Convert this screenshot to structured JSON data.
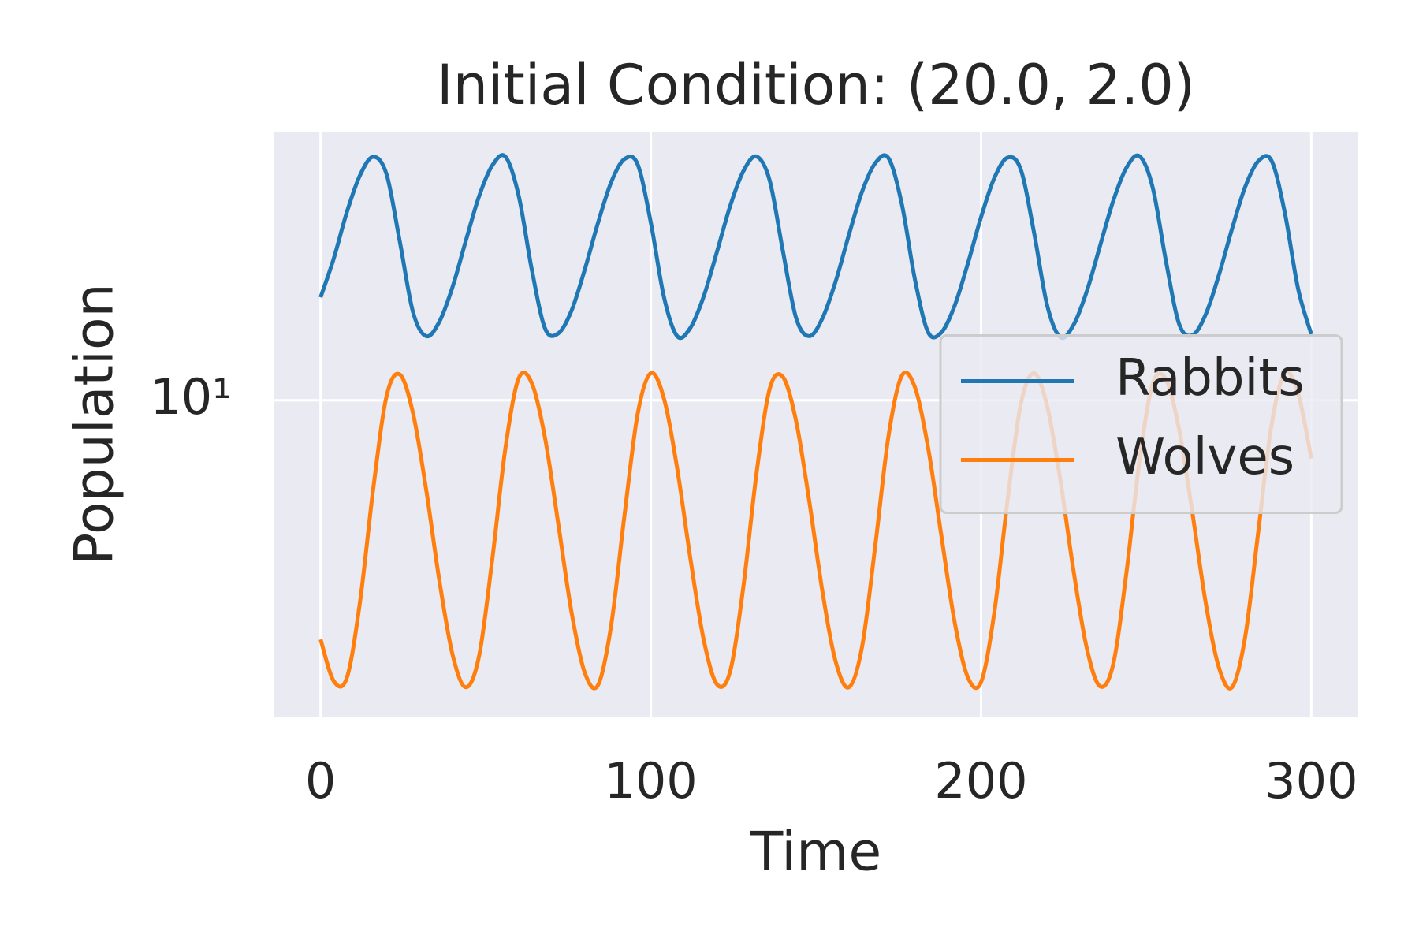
{
  "chart_data": {
    "type": "line",
    "title": "Initial Condition: (20.0, 2.0)",
    "x_label": "Time",
    "y_label": "Population",
    "x": [
      0,
      4,
      8,
      12,
      16,
      20,
      24,
      28,
      32,
      36,
      40,
      44,
      48,
      52,
      56,
      60,
      64,
      68,
      72,
      76,
      80,
      84,
      88,
      92,
      96,
      100,
      104,
      108,
      112,
      116,
      120,
      124,
      128,
      132,
      136,
      140,
      144,
      148,
      152,
      156,
      160,
      164,
      168,
      172,
      176,
      180,
      184,
      188,
      192,
      196,
      200,
      204,
      208,
      212,
      216,
      220,
      224,
      228,
      232,
      236,
      240,
      244,
      248,
      252,
      256,
      260,
      264,
      268,
      272,
      276,
      280,
      284,
      288,
      292,
      296,
      300
    ],
    "series": [
      {
        "name": "Rabbits",
        "color": "#1f77b4",
        "values": [
          20,
          26.0,
          35.6,
          45.6,
          51.5,
          45.7,
          29.1,
          18.1,
          15.4,
          17.0,
          21.5,
          29.3,
          39.5,
          48.6,
          51.5,
          39.6,
          24.0,
          16.2,
          15.7,
          18.3,
          24.1,
          33.0,
          43.4,
          50.7,
          49.0,
          33.1,
          20.0,
          15.4,
          16.3,
          20.1,
          27.1,
          36.9,
          46.7,
          51.6,
          43.9,
          27.3,
          17.4,
          15.4,
          17.4,
          22.3,
          30.5,
          40.8,
          49.4,
          51.0,
          37.5,
          22.5,
          15.8,
          15.8,
          18.9,
          25.1,
          34.3,
          44.6,
          51.2,
          47.4,
          31.1,
          19.0,
          15.3,
          16.6,
          20.8,
          28.2,
          38.2,
          47.8,
          51.7,
          41.8,
          25.5,
          16.7,
          15.5,
          17.8,
          23.2,
          31.7,
          42.1,
          50.1,
          50.1,
          35.3,
          21.2,
          15.6
        ]
      },
      {
        "name": "Wolves",
        "color": "#ff7f0e",
        "values": [
          2.0,
          1.51,
          1.55,
          2.6,
          5.57,
          10.3,
          11.9,
          9.16,
          5.46,
          2.96,
          1.8,
          1.45,
          1.79,
          3.43,
          7.28,
          11.6,
          11.2,
          7.73,
          4.34,
          2.4,
          1.6,
          1.47,
          2.2,
          4.59,
          9.1,
          12.0,
          10.1,
          6.31,
          3.44,
          2.0,
          1.48,
          1.61,
          2.84,
          6.11,
          10.8,
          11.7,
          8.69,
          5.06,
          2.75,
          1.72,
          1.45,
          1.91,
          3.78,
          7.89,
          11.8,
          10.9,
          7.24,
          4.01,
          2.25,
          1.55,
          1.5,
          2.39,
          5.07,
          9.7,
          12.0,
          9.64,
          5.86,
          3.18,
          1.89,
          1.46,
          1.69,
          3.12,
          6.68,
          11.2,
          11.5,
          8.2,
          4.69,
          2.57,
          1.66,
          1.45,
          2.04,
          4.17,
          8.51,
          12.0,
          10.5,
          6.76
        ]
      }
    ],
    "xlim": [
      -14,
      314
    ],
    "xticks": [
      0,
      100,
      200,
      300
    ],
    "ylim": [
      1.19,
      61
    ],
    "yscale": "log",
    "yticks": [
      {
        "value": 10,
        "label": "10¹"
      }
    ],
    "grid": true,
    "legend": "center right"
  }
}
